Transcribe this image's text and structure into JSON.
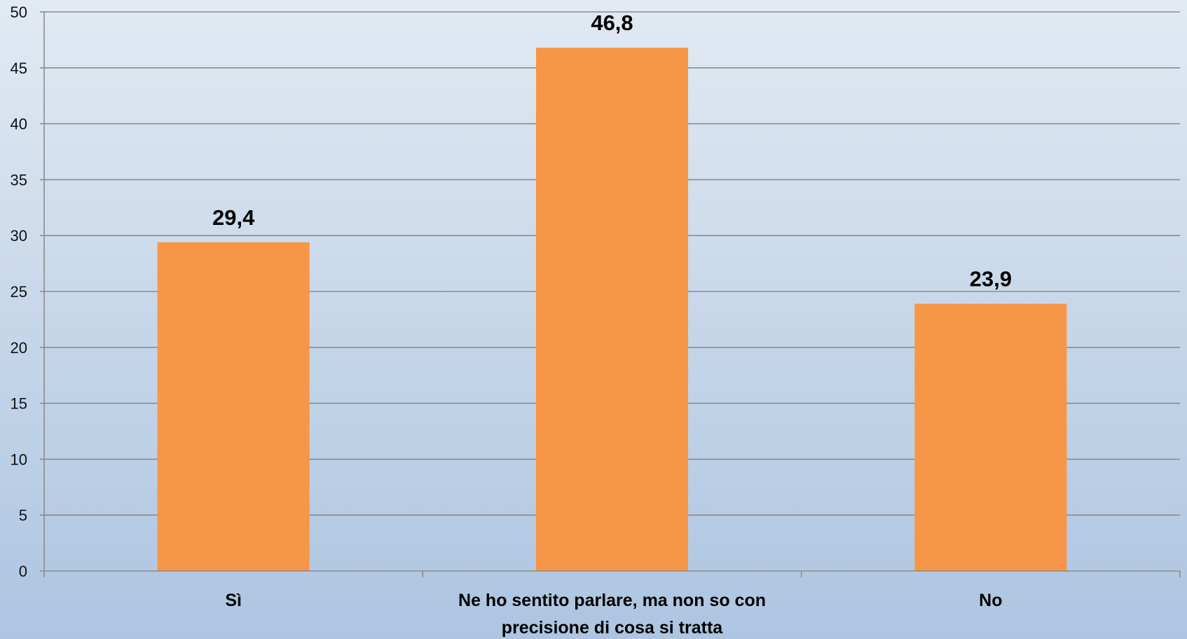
{
  "chart_data": {
    "type": "bar",
    "categories": [
      [
        "Sì"
      ],
      [
        "Ne ho sentito parlare, ma non so con",
        "precisione di cosa si tratta"
      ],
      [
        "No"
      ]
    ],
    "values": [
      29.4,
      46.8,
      23.9
    ],
    "value_labels": [
      "29,4",
      "46,8",
      "23,9"
    ],
    "ylim": [
      0,
      50
    ],
    "yticks": [
      0,
      5,
      10,
      15,
      20,
      25,
      30,
      35,
      40,
      45,
      50
    ],
    "grid": true,
    "legend": "none",
    "colors": {
      "bar": "#f79646",
      "grid": "#8c8c8c",
      "axis": "#8c8c8c"
    }
  }
}
